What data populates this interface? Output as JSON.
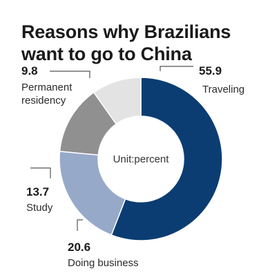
{
  "chart_data": {
    "type": "pie",
    "title": "Reasons why Brazilians want to go to China",
    "center_label": "Unit:percent",
    "categories": [
      "Traveling",
      "Doing business",
      "Study",
      "Permanent residency"
    ],
    "values": [
      55.9,
      20.6,
      13.7,
      9.8
    ],
    "value_labels": [
      "55.9",
      "20.6",
      "13.7",
      "9.8"
    ],
    "category_labels": [
      "Traveling",
      "Doing business",
      "Study",
      [
        "Permanent",
        "residency"
      ]
    ],
    "colors": [
      "#0b3d73",
      "#97a9c9",
      "#909090",
      "#e3e3e3"
    ],
    "donut": true
  }
}
